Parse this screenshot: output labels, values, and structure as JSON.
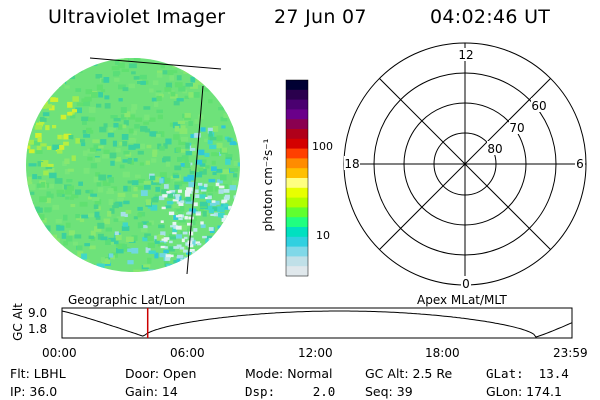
{
  "header": {
    "instrument": "Ultraviolet Imager",
    "date": "27 Jun 07",
    "time": "04:02:46 UT"
  },
  "colorbar": {
    "unit_label": "photon cm⁻²s⁻¹",
    "ticks": [
      "100",
      "10"
    ],
    "colors": [
      "#000033",
      "#2a004d",
      "#4a0070",
      "#6a008a",
      "#8a0050",
      "#b0001a",
      "#d40000",
      "#ff4000",
      "#ff8c00",
      "#ffc000",
      "#ffff80",
      "#e8ff00",
      "#b0ff00",
      "#60ff30",
      "#20ff80",
      "#00e0c0",
      "#30d0e0",
      "#80d8e8",
      "#c0e0e8",
      "#e0e8ec"
    ]
  },
  "polar_plot": {
    "mlt_labels": {
      "top": "12",
      "right": "6",
      "bottom": "0",
      "left": "18"
    },
    "lat_labels": [
      "60",
      "70",
      "80"
    ]
  },
  "timeline": {
    "left_title": "Geographic Lat/Lon",
    "right_title": "Apex MLat/MLT",
    "y_label": "GC Alt",
    "y_ticks": [
      "9.0",
      "1.8"
    ],
    "x_ticks": [
      "00:00",
      "06:00",
      "12:00",
      "18:00",
      "23:59"
    ],
    "marker_time": "04:02",
    "marker_color": "#cc0000"
  },
  "info": {
    "flt": "Flt: LBHL",
    "ip": "IP: 36.0",
    "door": "Door: Open",
    "gain": "Gain: 14",
    "mode": "Mode: Normal",
    "dsp": "Dsp:     2.0",
    "gc_alt": "GC Alt: 2.5 Re",
    "seq": "Seq: 39",
    "glat": "GLat:  13.4",
    "glon": "GLon: 174.1"
  }
}
